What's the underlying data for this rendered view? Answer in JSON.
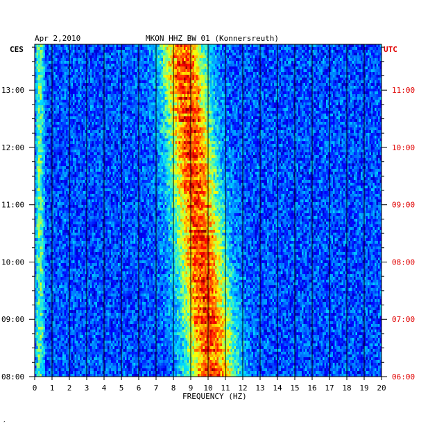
{
  "chart_data": {
    "type": "heatmap",
    "date": "Apr 2,2010",
    "title": "MKON HHZ BW 01 (Konnersreuth)",
    "left_axis_label": "CES",
    "right_axis_label": "UTC",
    "xlabel": "FREQUENCY (HZ)",
    "xlim": [
      0,
      20
    ],
    "x_ticks": [
      "0",
      "1",
      "2",
      "3",
      "4",
      "5",
      "6",
      "7",
      "8",
      "9",
      "10",
      "11",
      "12",
      "13",
      "14",
      "15",
      "16",
      "17",
      "18",
      "19",
      "20"
    ],
    "left_time_range": [
      "08:00",
      "13:48"
    ],
    "left_ticks": [
      "08:00",
      "09:00",
      "10:00",
      "11:00",
      "12:00",
      "13:00"
    ],
    "right_ticks": [
      "06:00",
      "07:00",
      "08:00",
      "09:00",
      "10:00",
      "11:00"
    ],
    "grid": true,
    "colormap": [
      "#00008b",
      "#0000ff",
      "#0080ff",
      "#00e0ff",
      "#80ff80",
      "#ffff00",
      "#ff8000",
      "#ff0000",
      "#800000"
    ],
    "energy_band": {
      "description_hz_at_start": [
        7.8,
        11.5
      ],
      "description_hz_at_end": [
        6.3,
        9.5
      ]
    }
  },
  "colors": {
    "background": "#ffffff",
    "plot_base": "#0a14c8",
    "utc_labels": "#e00000",
    "grid": "#000000"
  },
  "footer_mark": "′"
}
